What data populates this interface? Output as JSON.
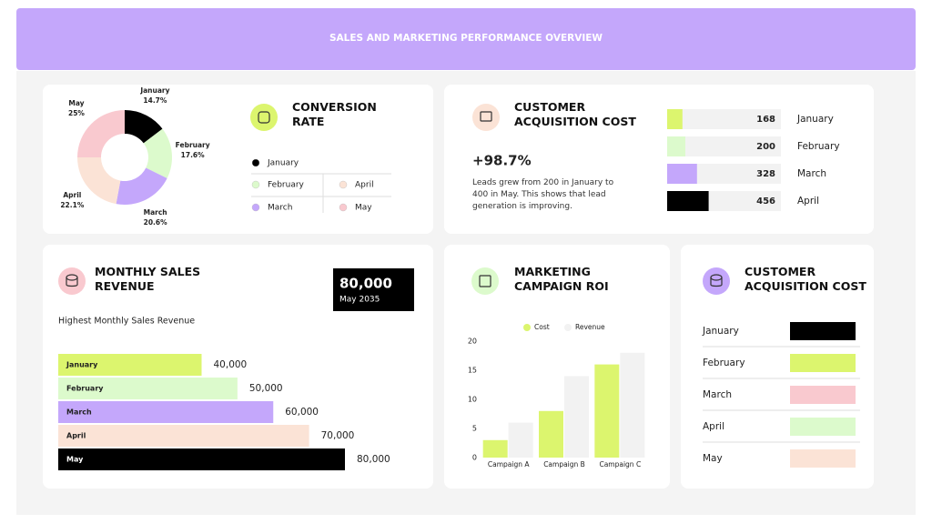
{
  "header": {
    "title": "SALES AND MARKETING PERFORMANCE OVERVIEW"
  },
  "chart_data": [
    {
      "type": "pie",
      "title": "CONVERSION RATE",
      "donut": true,
      "categories": [
        "January",
        "February",
        "March",
        "April",
        "May"
      ],
      "values": [
        14.7,
        17.6,
        20.6,
        22.1,
        25
      ],
      "value_labels": [
        "14.7%",
        "17.6%",
        "20.6%",
        "22.1%",
        "25%"
      ],
      "colors": [
        "#000000",
        "#dcfacc",
        "#c4a7fb",
        "#fbe3d6",
        "#f9c9cf"
      ],
      "legend": "right"
    },
    {
      "type": "bar",
      "orientation": "horizontal",
      "title": "CUSTOMER ACQUISITION COST",
      "kpi": "+98.7%",
      "note": "Leads grew from 200 in January to 400 in May. This shows that lead generation is improving.",
      "categories": [
        "January",
        "February",
        "March",
        "April"
      ],
      "values": [
        168,
        200,
        328,
        456
      ],
      "colors": [
        "#dcf56e",
        "#dcfacc",
        "#c4a7fb",
        "#000000"
      ]
    },
    {
      "type": "bar",
      "orientation": "horizontal",
      "title": "MONTHLY SALES REVENUE",
      "subtitle": "Highest Monthly Sales Revenue",
      "kpi": "80,000",
      "kpi_note": "May 2035",
      "categories": [
        "January",
        "February",
        "March",
        "April",
        "May"
      ],
      "values": [
        40000,
        50000,
        60000,
        70000,
        80000
      ],
      "value_labels": [
        "40,000",
        "50,000",
        "60,000",
        "70,000",
        "80,000"
      ],
      "colors": [
        "#dcf56e",
        "#dcfacc",
        "#c4a7fb",
        "#fbe3d6",
        "#000000"
      ]
    },
    {
      "type": "grouped-bar",
      "title": "MARKETING CAMPAIGN ROI",
      "categories": [
        "Campaign A",
        "Campaign B",
        "Campaign C"
      ],
      "series": [
        {
          "name": "Cost",
          "color": "#dcf56e",
          "values": [
            3,
            8,
            16
          ]
        },
        {
          "name": "Revenue",
          "color": "#f2f2f2",
          "values": [
            6,
            14,
            18
          ]
        }
      ],
      "ylim": [
        0,
        20
      ],
      "yticks": [
        0,
        5,
        10,
        15,
        20
      ],
      "grid": false,
      "legend": "top"
    }
  ],
  "table": {
    "title": "CUSTOMER ACQUISITION COST",
    "rows": [
      "January",
      "February",
      "March",
      "April",
      "May"
    ],
    "colors": [
      "#000000",
      "#dcf56e",
      "#f9c9cf",
      "#dcfacc",
      "#fbe3d6"
    ]
  }
}
